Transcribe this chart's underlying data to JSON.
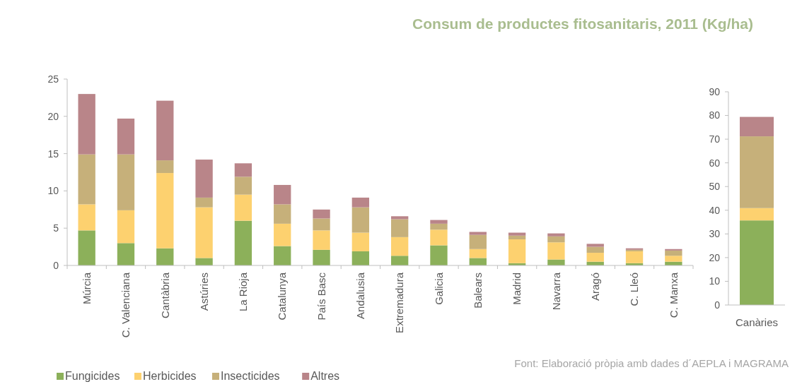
{
  "chart_data": [
    {
      "type": "bar",
      "stacked": true,
      "title": "Consum de productes fitosanitaris, 2011 (Kg/ha)",
      "annotations": [
        "Font: Elaboració pròpia amb dades d´AEPLA i MAGRAMA"
      ],
      "categories": [
        "Múrcia",
        "C. Valenciana",
        "Cantàbria",
        "Astúries",
        "La Rioja",
        "Catalunya",
        "País Basc",
        "Andalusia",
        "Extremadura",
        "Galicia",
        "Balears",
        "Madrid",
        "Navarra",
        "Aragó",
        "C. Lleó",
        "C. Manxa"
      ],
      "series": [
        {
          "name": "Fungicides",
          "color": "#8cb05a",
          "values": [
            4.7,
            3.0,
            2.3,
            1.0,
            6.0,
            2.6,
            2.1,
            1.9,
            1.3,
            2.7,
            1.0,
            0.3,
            0.8,
            0.5,
            0.3,
            0.5
          ]
        },
        {
          "name": "Herbicides",
          "color": "#fdd16f",
          "values": [
            3.5,
            4.4,
            10.1,
            6.8,
            3.5,
            3.0,
            2.6,
            2.5,
            2.5,
            2.1,
            1.2,
            3.2,
            2.3,
            1.2,
            1.6,
            0.8
          ]
        },
        {
          "name": "Insecticides",
          "color": "#c6b07a",
          "values": [
            6.7,
            7.5,
            1.7,
            1.3,
            2.4,
            2.6,
            1.6,
            3.4,
            2.4,
            0.8,
            1.9,
            0.5,
            0.8,
            0.8,
            0.2,
            0.7
          ]
        },
        {
          "name": "Altres",
          "color": "#b98589",
          "values": [
            8.1,
            4.8,
            8.0,
            5.1,
            1.8,
            2.6,
            1.2,
            1.3,
            0.4,
            0.5,
            0.4,
            0.4,
            0.4,
            0.4,
            0.2,
            0.2
          ]
        }
      ],
      "ylim": [
        0,
        25
      ],
      "yticks": [
        0,
        5,
        10,
        15,
        20,
        25
      ],
      "legend": "bottom"
    },
    {
      "type": "bar",
      "stacked": true,
      "categories": [
        "Canàries"
      ],
      "series": [
        {
          "color": "#8cb05a",
          "values": [
            35.7
          ]
        },
        {
          "color": "#fdd16f",
          "values": [
            5.2
          ]
        },
        {
          "color": "#c6b07a",
          "values": [
            30.3
          ]
        },
        {
          "color": "#b98589",
          "values": [
            8.2
          ]
        }
      ],
      "ylim": [
        0,
        90
      ],
      "yticks": [
        0,
        10,
        20,
        30,
        40,
        50,
        60,
        70,
        80,
        90
      ]
    }
  ]
}
